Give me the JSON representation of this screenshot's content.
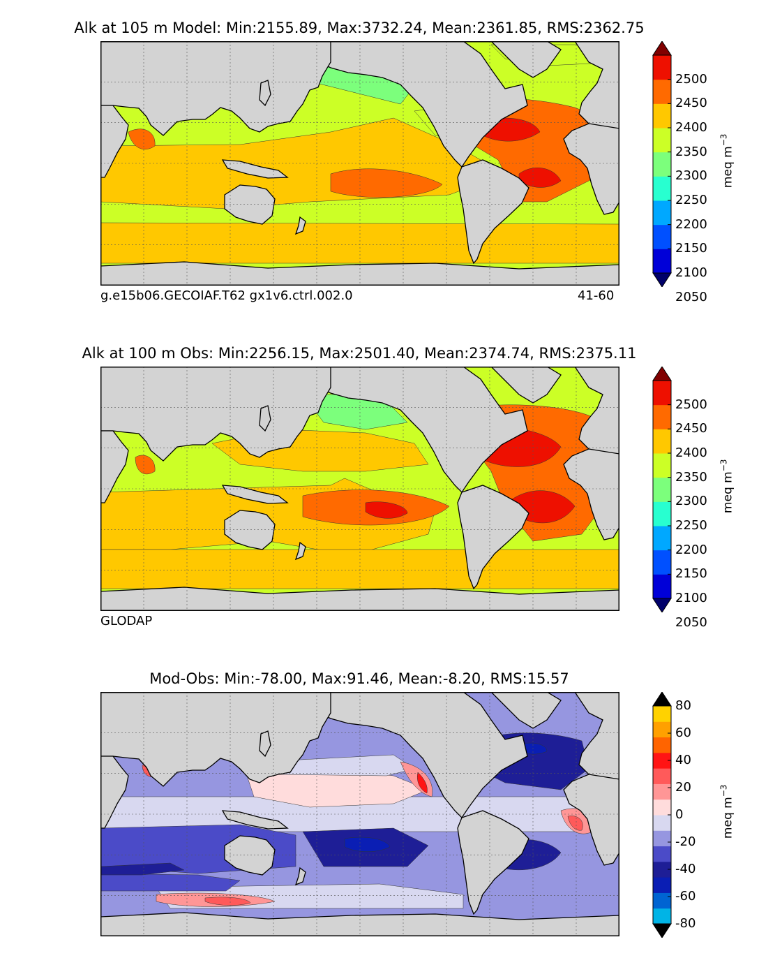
{
  "panels": [
    {
      "id": "model",
      "title": "Alk at 105 m Model: Min:2155.89, Max:3732.24, Mean:2361.85, RMS:2362.75",
      "footer_left": "g.e15b06.GECOIAF.T62 gx1v6.ctrl.002.0",
      "footer_right": "41-60",
      "colorbar": {
        "unit_label": "meq m",
        "unit_exp": "−3",
        "ticks": [
          "2500",
          "2450",
          "2400",
          "2350",
          "2300",
          "2250",
          "2200",
          "2150",
          "2100",
          "2050"
        ],
        "colors": [
          "#00006a",
          "#0000d8",
          "#0050ff",
          "#00a8ff",
          "#28ffd0",
          "#7cff7c",
          "#ccff26",
          "#ffc800",
          "#ff6a00",
          "#ee1000",
          "#800000"
        ]
      }
    },
    {
      "id": "obs",
      "title": "Alk at 100 m Obs: Min:2256.15, Max:2501.40, Mean:2374.74, RMS:2375.11",
      "footer_left": "GLODAP",
      "footer_right": "",
      "colorbar": {
        "unit_label": "meq m",
        "unit_exp": "−3",
        "ticks": [
          "2500",
          "2450",
          "2400",
          "2350",
          "2300",
          "2250",
          "2200",
          "2150",
          "2100",
          "2050"
        ],
        "colors": [
          "#00006a",
          "#0000d8",
          "#0050ff",
          "#00a8ff",
          "#28ffd0",
          "#7cff7c",
          "#ccff26",
          "#ffc800",
          "#ff6a00",
          "#ee1000",
          "#800000"
        ]
      }
    },
    {
      "id": "diff",
      "title": "Mod-Obs: Min:-78.00, Max:91.46, Mean:-8.20, RMS:15.57",
      "footer_left": "",
      "footer_right": "",
      "colorbar": {
        "unit_label": "meq m",
        "unit_exp": "−3",
        "ticks": [
          "80",
          "60",
          "40",
          "20",
          "0",
          "-20",
          "-40",
          "-60",
          "-80"
        ],
        "colors": [
          "#00ffff",
          "#00b4e6",
          "#0064d2",
          "#0a1eb4",
          "#1e1e96",
          "#4b4bc8",
          "#9696e0",
          "#d8d8f0",
          "#ffdcdc",
          "#ff9696",
          "#ff5a5a",
          "#ff1414",
          "#ff6400",
          "#ffa000",
          "#ffd200",
          "#ffff1e"
        ]
      }
    }
  ],
  "chart_data": [
    {
      "type": "heatmap",
      "title": "Alk at 105 m Model: Min:2155.89, Max:3732.24, Mean:2361.85, RMS:2362.75",
      "variable": "Alk",
      "depth_m": 105,
      "statistics": {
        "min": 2155.89,
        "max": 3732.24,
        "mean": 2361.85,
        "rms": 2362.75
      },
      "colorbar_levels": [
        2050,
        2100,
        2150,
        2200,
        2250,
        2300,
        2350,
        2400,
        2450,
        2500
      ],
      "colorbar_range": [
        2000,
        2550
      ],
      "extend": "both",
      "projection": "cylindrical global map",
      "land_color": "#d3d3d3",
      "grid": true,
      "colorbar_position": "right"
    },
    {
      "type": "heatmap",
      "title": "Alk at 100 m Obs: Min:2256.15, Max:2501.40, Mean:2374.74, RMS:2375.11",
      "variable": "Alk",
      "depth_m": 100,
      "statistics": {
        "min": 2256.15,
        "max": 2501.4,
        "mean": 2374.74,
        "rms": 2375.11
      },
      "colorbar_levels": [
        2050,
        2100,
        2150,
        2200,
        2250,
        2300,
        2350,
        2400,
        2450,
        2500
      ],
      "colorbar_range": [
        2000,
        2550
      ],
      "extend": "both",
      "projection": "cylindrical global map",
      "land_color": "#d3d3d3",
      "grid": true,
      "colorbar_position": "right"
    },
    {
      "type": "heatmap",
      "title": "Mod-Obs: Min:-78.00, Max:91.46, Mean:-8.20, RMS:15.57",
      "variable": "Mod-Obs",
      "statistics": {
        "min": -78.0,
        "max": 91.46,
        "mean": -8.2,
        "rms": 15.57
      },
      "colorbar_levels": [
        -80,
        -70,
        -60,
        -50,
        -40,
        -30,
        -20,
        -10,
        0,
        10,
        20,
        30,
        40,
        50,
        60,
        70,
        80
      ],
      "colorbar_range": [
        -80,
        80
      ],
      "extend": "both",
      "projection": "cylindrical global map",
      "land_color": "#d3d3d3",
      "grid": true,
      "colorbar_position": "right"
    }
  ]
}
